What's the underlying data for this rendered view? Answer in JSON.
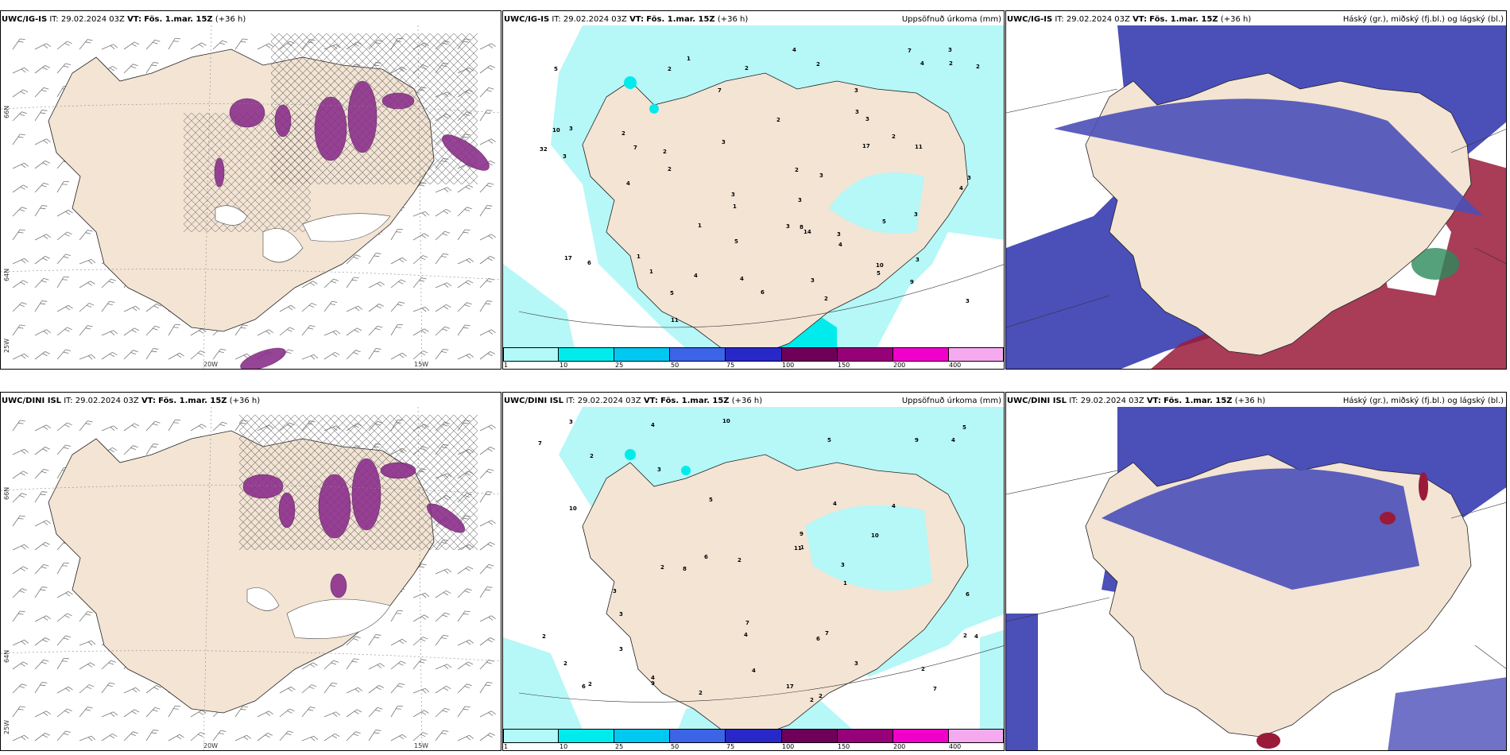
{
  "rows": [
    {
      "model_id": "UWC/IG-IS",
      "it_label": "IT:",
      "it_value": "29.02.2024 03Z",
      "vt_label": "VT:",
      "vt_value": "Fös. 1.mar. 15Z",
      "lead": "(+36 h)"
    },
    {
      "model_id": "UWC/DINI ISL",
      "it_label": "IT:",
      "it_value": "29.02.2024 03Z",
      "vt_label": "VT:",
      "vt_value": "Fös. 1.mar. 15Z",
      "lead": "(+36 h)"
    }
  ],
  "precip_title": "Uppsöfnuð úrkoma (mm)",
  "cloud_title": "Háský (gr.), miðský (fj.bl.) og lágský (bl.)",
  "colorbar": {
    "labels": [
      "1",
      "10",
      "25",
      "50",
      "75",
      "100",
      "150",
      "200",
      "400"
    ],
    "colors": [
      "#b2fafa",
      "#00ecec",
      "#00c8f0",
      "#3c64e6",
      "#2828c8",
      "#6e005a",
      "#960078",
      "#f000c8",
      "#f5aaf0"
    ]
  },
  "axes": {
    "lat_66": "66N",
    "lat_64": "64N",
    "lat_25": "25W",
    "lon_20": "20W",
    "lon_15": "15W"
  },
  "precip_numbers_top": [
    "2",
    "2",
    "1",
    "2",
    "2",
    "3",
    "4",
    "2",
    "1",
    "1",
    "6",
    "10",
    "3",
    "8",
    "17",
    "7",
    "3",
    "4",
    "5",
    "11",
    "10",
    "14",
    "5",
    "5",
    "3",
    "3",
    "4",
    "7",
    "6",
    "7",
    "4",
    "3",
    "3",
    "4",
    "1",
    "4",
    "4",
    "3",
    "3",
    "3",
    "2",
    "2",
    "2",
    "3",
    "2",
    "3",
    "3",
    "5",
    "3",
    "2",
    "1",
    "2",
    "2",
    "3",
    "5",
    "3",
    "9",
    "3",
    "11",
    "17",
    "32"
  ],
  "precip_numbers_bottom": [
    "2",
    "2",
    "4",
    "3",
    "4",
    "2",
    "2",
    "7",
    "10",
    "5",
    "9",
    "4",
    "6",
    "4",
    "5",
    "11",
    "10",
    "9",
    "8",
    "7",
    "6",
    "5",
    "9",
    "6",
    "4",
    "3",
    "2",
    "3",
    "3",
    "1",
    "2",
    "2",
    "7",
    "4",
    "3",
    "3",
    "2",
    "2",
    "4",
    "2",
    "1",
    "10",
    "4",
    "2",
    "3",
    "7",
    "6",
    "17"
  ],
  "colors": {
    "land": "#f3e4d4",
    "light_cyan": "#b6f7f7",
    "cyan": "#00ebeb",
    "purple_precip": "#8b2f8b",
    "cloud_blue": "#4b4fb8",
    "cloud_red": "#9a1a3a",
    "cloud_green": "#2a8a5a"
  }
}
